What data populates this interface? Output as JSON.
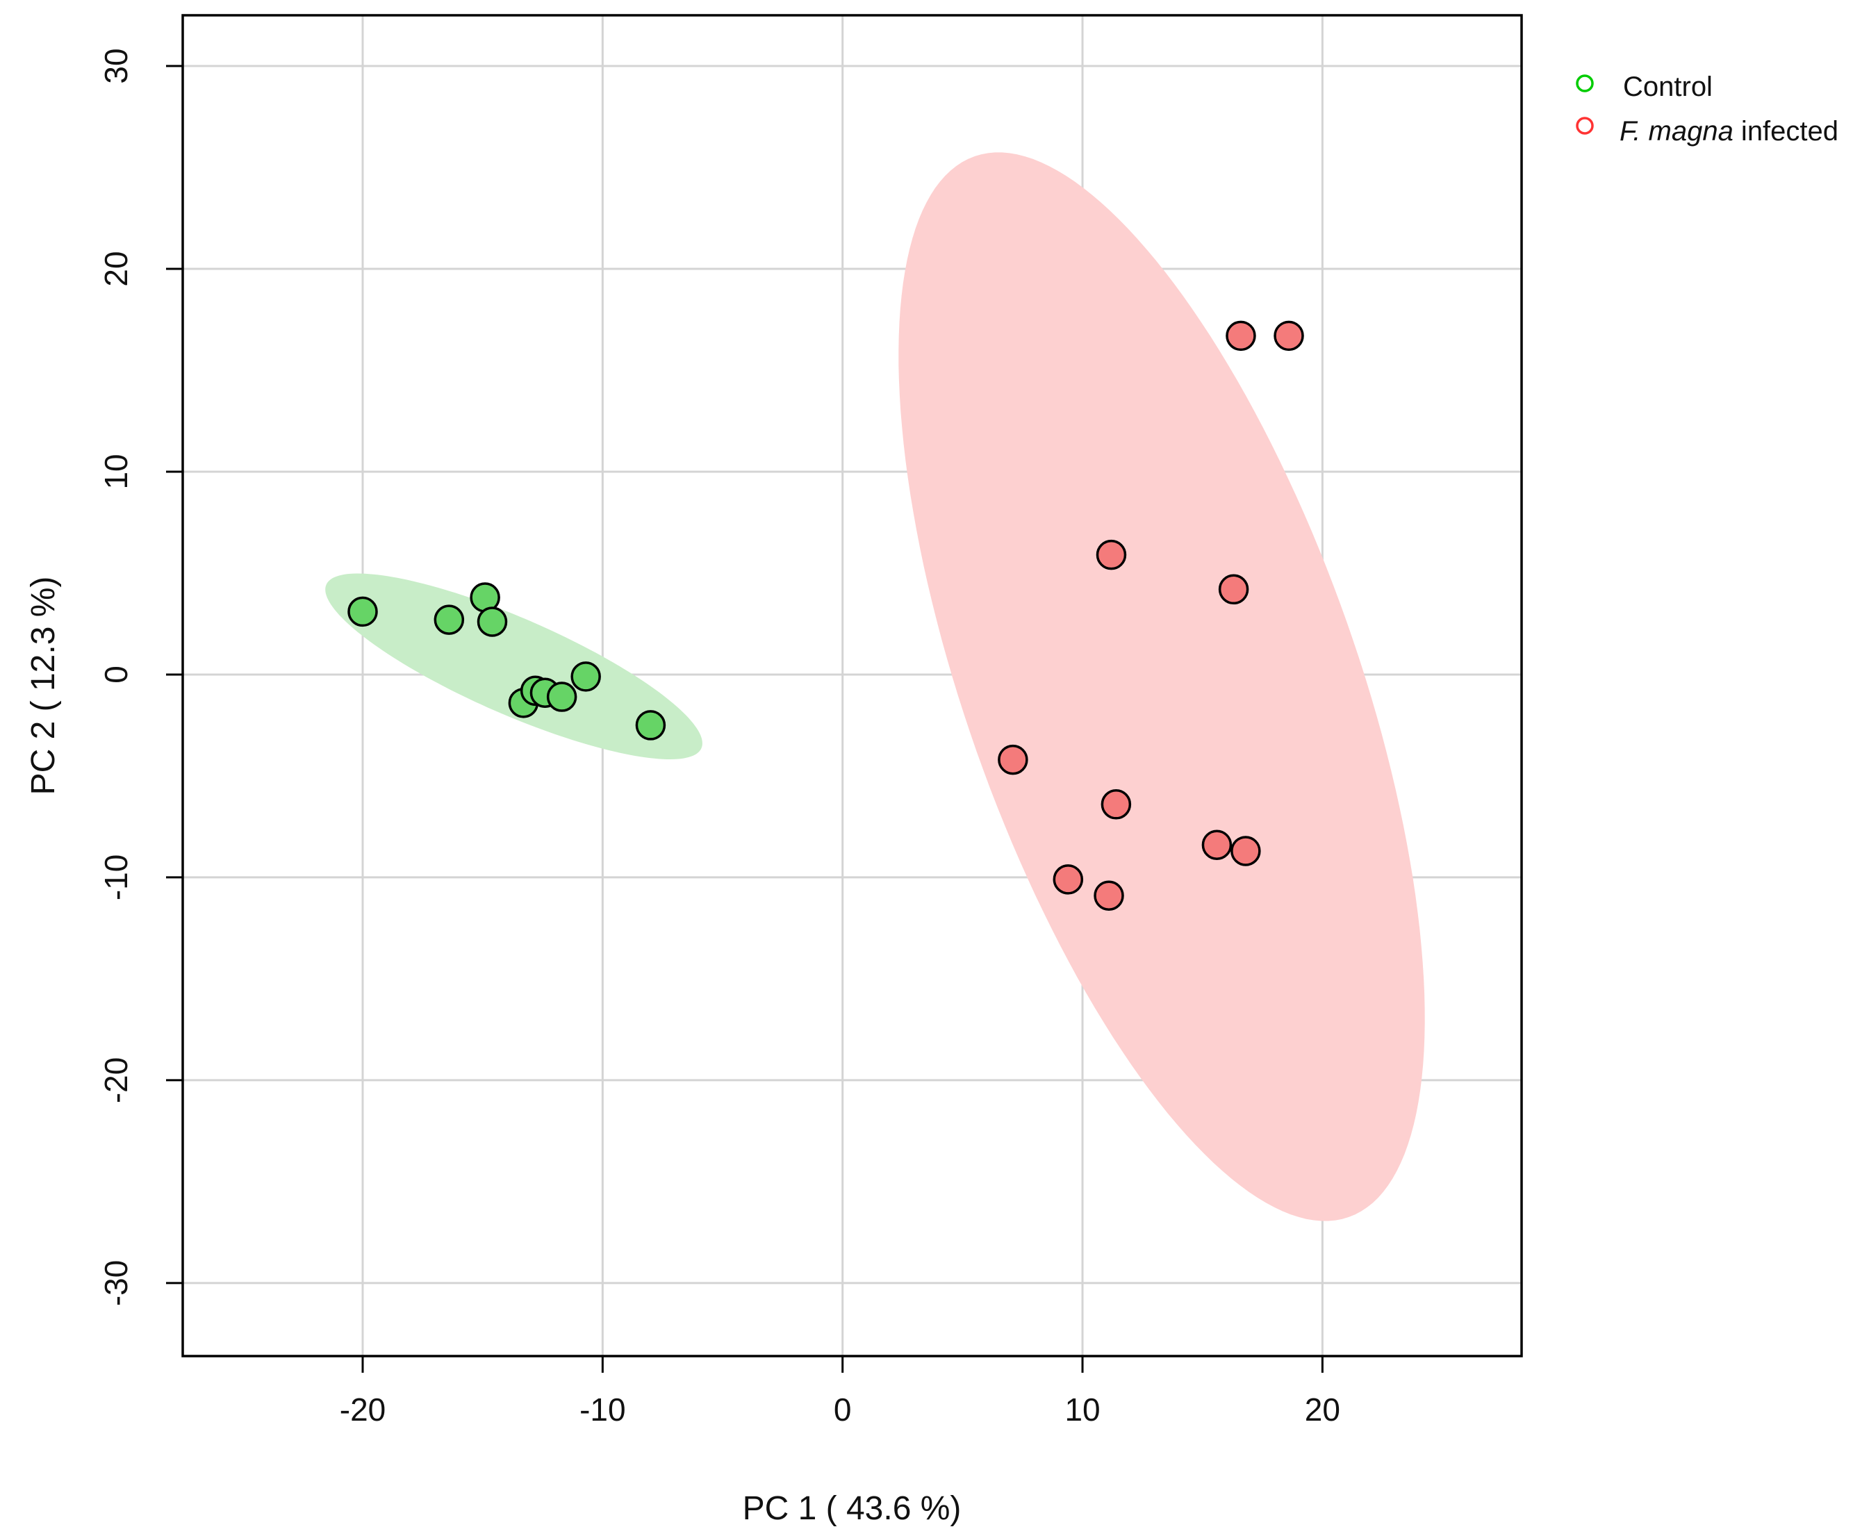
{
  "chart_data": {
    "type": "scatter",
    "title": "",
    "xlabel": "PC 1 ( 43.6 %)",
    "ylabel": "PC 2 ( 12.3 %)",
    "xlim": [
      -27.5,
      28.3
    ],
    "ylim": [
      -33.6,
      32.5
    ],
    "xticks": [
      -20,
      -10,
      0,
      10,
      20
    ],
    "yticks": [
      -30,
      -20,
      -10,
      0,
      10,
      20,
      30
    ],
    "xtick_labels": [
      "-20",
      "-10",
      "0",
      "10",
      "20"
    ],
    "ytick_labels": [
      "-30",
      "-20",
      "-10",
      "0",
      "10",
      "20",
      "30"
    ],
    "grid": true,
    "legend_position": "top-right (outside plot)",
    "series": [
      {
        "name": "Control",
        "color": "#00cc00",
        "fill": "#66d466",
        "ellipse_fill": "#c8edc8",
        "ellipse": {
          "cx": -13.7,
          "cy": 0.4,
          "rx": 8.8,
          "ry": 2.3,
          "angle_deg": -27.8
        },
        "points": [
          {
            "x": -20.0,
            "y": 3.1
          },
          {
            "x": -16.4,
            "y": 2.7
          },
          {
            "x": -14.9,
            "y": 3.8
          },
          {
            "x": -14.6,
            "y": 2.6
          },
          {
            "x": -13.3,
            "y": -1.4
          },
          {
            "x": -12.8,
            "y": -0.8
          },
          {
            "x": -12.4,
            "y": -0.9
          },
          {
            "x": -11.7,
            "y": -1.1
          },
          {
            "x": -10.7,
            "y": -0.1
          },
          {
            "x": -8.0,
            "y": -2.5
          }
        ]
      },
      {
        "name": "F. magna infected",
        "name_italic": "F. magna",
        "name_rest": " infected",
        "color": "#ff3333",
        "fill": "#f47b7b",
        "ellipse_fill": "#fdd0d0",
        "ellipse": {
          "cx": 13.3,
          "cy": -0.6,
          "rx": 8.3,
          "ry": 27.3,
          "angle_deg": 16.0
        },
        "points": [
          {
            "x": 16.6,
            "y": 16.7
          },
          {
            "x": 18.6,
            "y": 16.7
          },
          {
            "x": 11.2,
            "y": 5.9
          },
          {
            "x": 16.3,
            "y": 4.2
          },
          {
            "x": 7.1,
            "y": -4.2
          },
          {
            "x": 11.4,
            "y": -6.4
          },
          {
            "x": 15.6,
            "y": -8.4
          },
          {
            "x": 16.8,
            "y": -8.7
          },
          {
            "x": 9.4,
            "y": -10.1
          },
          {
            "x": 11.1,
            "y": -10.9
          }
        ]
      }
    ]
  }
}
